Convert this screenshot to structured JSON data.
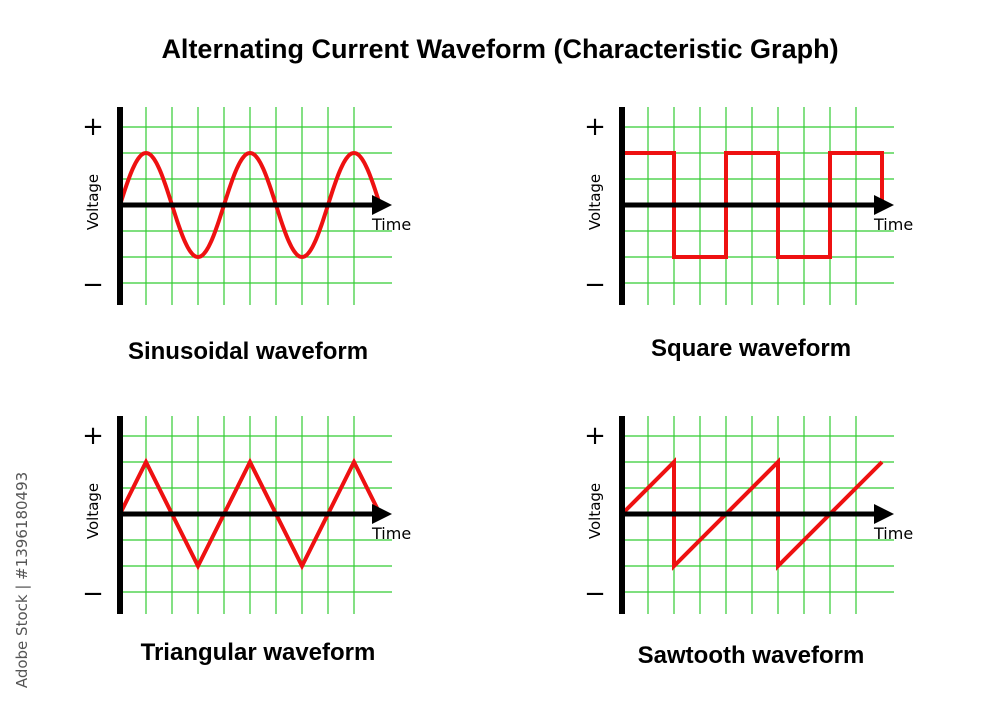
{
  "title": "Alternating Current Waveform (Characteristic Graph)",
  "watermark": "Adobe Stock | #1396180493",
  "colors": {
    "grid": "#33cc33",
    "wave": "#ee1111",
    "axis": "#000000"
  },
  "chart_data": [
    {
      "type": "line",
      "caption": "Sinusoidal waveform",
      "xlabel": "Time",
      "ylabel": "Voltage",
      "plus": "+",
      "minus": "−",
      "shape": "sine",
      "amplitude": 2,
      "period": 4,
      "xrange": [
        0,
        10
      ],
      "grid": true
    },
    {
      "type": "line",
      "caption": "Square waveform",
      "xlabel": "Time",
      "ylabel": "Voltage",
      "plus": "+",
      "minus": "−",
      "shape": "square",
      "points": [
        [
          0,
          2
        ],
        [
          2,
          2
        ],
        [
          2,
          -2
        ],
        [
          4,
          -2
        ],
        [
          4,
          2
        ],
        [
          6,
          2
        ],
        [
          6,
          -2
        ],
        [
          8,
          -2
        ],
        [
          8,
          2
        ],
        [
          10,
          2
        ],
        [
          10,
          0
        ]
      ],
      "grid": true
    },
    {
      "type": "line",
      "caption": "Triangular waveform",
      "xlabel": "Time",
      "ylabel": "Voltage",
      "plus": "+",
      "minus": "−",
      "shape": "triangle",
      "points": [
        [
          0,
          0
        ],
        [
          1,
          2
        ],
        [
          3,
          -2
        ],
        [
          5,
          2
        ],
        [
          7,
          -2
        ],
        [
          9,
          2
        ],
        [
          10,
          0
        ]
      ],
      "grid": true
    },
    {
      "type": "line",
      "caption": "Sawtooth waveform",
      "xlabel": "Time",
      "ylabel": "Voltage",
      "plus": "+",
      "minus": "−",
      "shape": "sawtooth",
      "points": [
        [
          0,
          0
        ],
        [
          2,
          2
        ],
        [
          2,
          -2
        ],
        [
          6,
          2
        ],
        [
          6,
          -2
        ],
        [
          10,
          2
        ]
      ],
      "grid": true
    }
  ]
}
